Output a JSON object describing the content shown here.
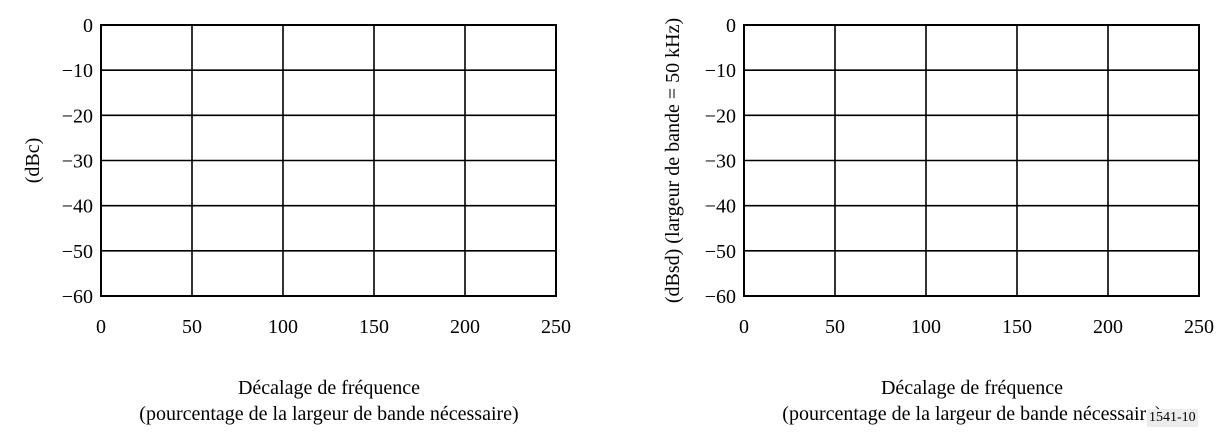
{
  "figure_id": "1541-10",
  "chart_data": [
    {
      "type": "line",
      "series": [],
      "xlim": [
        0,
        250
      ],
      "ylim": [
        -60,
        0
      ],
      "xticks": [
        0,
        50,
        100,
        150,
        200,
        250
      ],
      "yticks": [
        0,
        -10,
        -20,
        -30,
        -40,
        -50,
        -60
      ],
      "xtick_labels": [
        "0",
        "50",
        "100",
        "150",
        "200",
        "250"
      ],
      "ytick_labels": [
        "0",
        "−10",
        "−20",
        "−30",
        "−40",
        "−50",
        "−60"
      ],
      "xlabel": "Décalage de fréquence",
      "xlabel2": "(pourcentage de la largeur de bande nécessaire)",
      "ylabel": "(dBc)",
      "grid": true
    },
    {
      "type": "line",
      "series": [],
      "xlim": [
        0,
        250
      ],
      "ylim": [
        -60,
        0
      ],
      "xticks": [
        0,
        50,
        100,
        150,
        200,
        250
      ],
      "yticks": [
        0,
        -10,
        -20,
        -30,
        -40,
        -50,
        -60
      ],
      "xtick_labels": [
        "0",
        "50",
        "100",
        "150",
        "200",
        "250"
      ],
      "ytick_labels": [
        "0",
        "−10",
        "−20",
        "−30",
        "−40",
        "−50",
        "−60"
      ],
      "xlabel": "Décalage de fréquence",
      "xlabel2": "(pourcentage de la largeur de bande nécessaire)",
      "ylabel": "(dBsd) (largeur de bande = 50 kHz)",
      "grid": true
    }
  ]
}
